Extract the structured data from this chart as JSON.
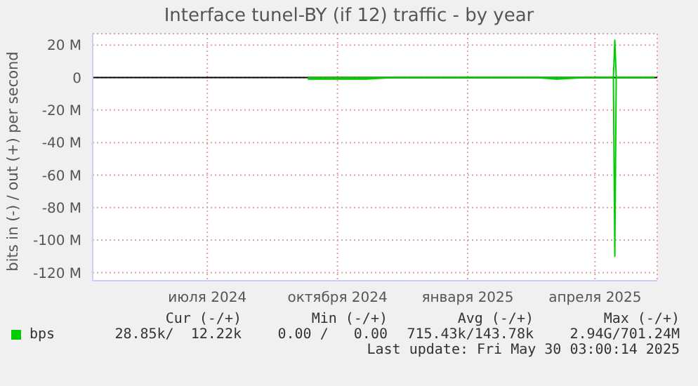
{
  "chart_data": {
    "type": "line",
    "title": "Interface tunel-BY (if 12) traffic - by year",
    "ylabel": "bits in (-) / out (+) per second",
    "x": [
      "2024-09-25",
      "2024-10-05",
      "2024-10-15",
      "2024-10-25",
      "2024-11-05",
      "2024-11-25",
      "2024-12-15",
      "2024-12-25",
      "2025-01-15",
      "2025-02-05",
      "2025-02-15",
      "2025-03-05",
      "2025-03-20",
      "2025-04-10",
      "2025-04-29",
      "2025-04-30",
      "2025-05-01",
      "2025-05-28"
    ],
    "series": [
      {
        "name": "bps",
        "color": "#00cc00",
        "values": [
          0,
          0,
          0,
          0,
          0,
          0,
          0,
          0,
          0,
          0,
          0,
          0,
          0,
          0,
          0,
          23,
          0,
          0
        ]
      },
      {
        "color": "#00cc00",
        "values": [
          -1,
          -1,
          -1,
          -1,
          -1,
          0,
          0,
          0,
          0,
          0,
          0,
          0,
          -1,
          0,
          0,
          -110,
          0,
          0
        ]
      }
    ],
    "xlim": [
      "2024-04-26",
      "2025-05-30"
    ],
    "xticks": [
      {
        "value": "2024-07-16",
        "label": "июля 2024"
      },
      {
        "value": "2024-10-16",
        "label": "октября 2024"
      },
      {
        "value": "2025-01-16",
        "label": "января 2025"
      },
      {
        "value": "2025-04-16",
        "label": "апреля 2025"
      }
    ],
    "ylim": [
      -125,
      27
    ],
    "yticks": [
      {
        "value": 20,
        "label": "20 M"
      },
      {
        "value": 0,
        "label": "0"
      },
      {
        "value": -20,
        "label": "-20 M"
      },
      {
        "value": -40,
        "label": "-40 M"
      },
      {
        "value": -60,
        "label": "-60 M"
      },
      {
        "value": -80,
        "label": "-80 M"
      },
      {
        "value": -100,
        "label": "-100 M"
      },
      {
        "value": -120,
        "label": "-120 M"
      }
    ],
    "ref_lines": [
      {
        "axis": "y",
        "value": 0,
        "color": "#000000"
      }
    ],
    "grid": true,
    "legend": "bottom left",
    "marker": "none",
    "line_style": "solid",
    "annotations": [
      "Cur (-/+)",
      "Min (-/+)",
      "Avg (-/+)",
      "Max (-/+)",
      "28.85k/  12.22k",
      "0.00 /   0.00",
      "715.43k/143.78k",
      "2.94G/701.24M",
      "Last update: Fri May 30 03:00:14 2025"
    ]
  }
}
